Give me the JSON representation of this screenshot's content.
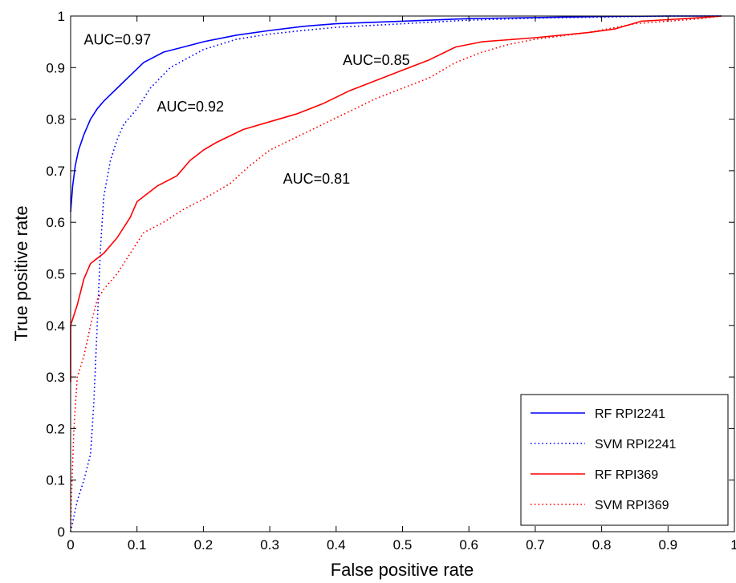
{
  "chart_data": {
    "type": "line",
    "xlabel": "False positive rate",
    "ylabel": "True positive rate",
    "xlim": [
      0,
      1
    ],
    "ylim": [
      0,
      1
    ],
    "x_ticks": [
      "0",
      "0.1",
      "0.2",
      "0.3",
      "0.4",
      "0.5",
      "0.6",
      "0.7",
      "0.8",
      "0.9",
      "1"
    ],
    "y_ticks": [
      "0",
      "0.1",
      "0.2",
      "0.3",
      "0.4",
      "0.5",
      "0.6",
      "0.7",
      "0.8",
      "0.9",
      "1"
    ],
    "grid": false,
    "legend_position": "bottom-right",
    "series": [
      {
        "name": "RF RPI2241",
        "color": "#0000ff",
        "style": "solid",
        "points": [
          [
            0,
            0.62
          ],
          [
            0.003,
            0.67
          ],
          [
            0.007,
            0.71
          ],
          [
            0.012,
            0.74
          ],
          [
            0.02,
            0.77
          ],
          [
            0.03,
            0.8
          ],
          [
            0.04,
            0.82
          ],
          [
            0.05,
            0.835
          ],
          [
            0.07,
            0.86
          ],
          [
            0.09,
            0.885
          ],
          [
            0.11,
            0.91
          ],
          [
            0.14,
            0.93
          ],
          [
            0.17,
            0.94
          ],
          [
            0.2,
            0.95
          ],
          [
            0.25,
            0.963
          ],
          [
            0.3,
            0.972
          ],
          [
            0.35,
            0.98
          ],
          [
            0.4,
            0.985
          ],
          [
            0.5,
            0.99
          ],
          [
            0.6,
            0.995
          ],
          [
            0.7,
            0.997
          ],
          [
            0.8,
            0.999
          ],
          [
            0.9,
            1
          ],
          [
            0.98,
            1
          ]
        ]
      },
      {
        "name": "SVM RPI2241",
        "color": "#0000ff",
        "style": "dotted",
        "points": [
          [
            0,
            0
          ],
          [
            0.005,
            0.03
          ],
          [
            0.01,
            0.06
          ],
          [
            0.02,
            0.1
          ],
          [
            0.03,
            0.15
          ],
          [
            0.035,
            0.25
          ],
          [
            0.04,
            0.4
          ],
          [
            0.045,
            0.55
          ],
          [
            0.05,
            0.65
          ],
          [
            0.06,
            0.72
          ],
          [
            0.07,
            0.76
          ],
          [
            0.08,
            0.79
          ],
          [
            0.1,
            0.82
          ],
          [
            0.12,
            0.86
          ],
          [
            0.15,
            0.9
          ],
          [
            0.2,
            0.935
          ],
          [
            0.25,
            0.955
          ],
          [
            0.3,
            0.965
          ],
          [
            0.35,
            0.972
          ],
          [
            0.4,
            0.978
          ],
          [
            0.5,
            0.985
          ],
          [
            0.6,
            0.992
          ],
          [
            0.7,
            0.996
          ],
          [
            0.8,
            0.998
          ],
          [
            0.9,
            1
          ],
          [
            0.98,
            1
          ]
        ]
      },
      {
        "name": "RF RPI369",
        "color": "#ff0000",
        "style": "solid",
        "points": [
          [
            0,
            0.29
          ],
          [
            0,
            0.4
          ],
          [
            0.01,
            0.44
          ],
          [
            0.02,
            0.49
          ],
          [
            0.03,
            0.52
          ],
          [
            0.05,
            0.54
          ],
          [
            0.07,
            0.57
          ],
          [
            0.09,
            0.61
          ],
          [
            0.1,
            0.64
          ],
          [
            0.13,
            0.67
          ],
          [
            0.16,
            0.69
          ],
          [
            0.18,
            0.72
          ],
          [
            0.2,
            0.74
          ],
          [
            0.22,
            0.755
          ],
          [
            0.26,
            0.78
          ],
          [
            0.3,
            0.795
          ],
          [
            0.34,
            0.81
          ],
          [
            0.38,
            0.83
          ],
          [
            0.42,
            0.855
          ],
          [
            0.46,
            0.875
          ],
          [
            0.5,
            0.895
          ],
          [
            0.54,
            0.915
          ],
          [
            0.58,
            0.94
          ],
          [
            0.62,
            0.95
          ],
          [
            0.7,
            0.958
          ],
          [
            0.78,
            0.968
          ],
          [
            0.82,
            0.975
          ],
          [
            0.86,
            0.99
          ],
          [
            0.9,
            0.993
          ],
          [
            0.95,
            0.997
          ],
          [
            0.98,
            1
          ]
        ]
      },
      {
        "name": "SVM RPI369",
        "color": "#ff0000",
        "style": "dotted",
        "points": [
          [
            0,
            0
          ],
          [
            0.002,
            0.1
          ],
          [
            0.005,
            0.2
          ],
          [
            0.01,
            0.3
          ],
          [
            0.02,
            0.34
          ],
          [
            0.03,
            0.4
          ],
          [
            0.04,
            0.45
          ],
          [
            0.05,
            0.47
          ],
          [
            0.07,
            0.5
          ],
          [
            0.09,
            0.54
          ],
          [
            0.11,
            0.58
          ],
          [
            0.14,
            0.6
          ],
          [
            0.17,
            0.625
          ],
          [
            0.2,
            0.645
          ],
          [
            0.24,
            0.675
          ],
          [
            0.27,
            0.71
          ],
          [
            0.3,
            0.74
          ],
          [
            0.34,
            0.765
          ],
          [
            0.38,
            0.79
          ],
          [
            0.42,
            0.815
          ],
          [
            0.46,
            0.84
          ],
          [
            0.5,
            0.86
          ],
          [
            0.54,
            0.88
          ],
          [
            0.58,
            0.91
          ],
          [
            0.62,
            0.93
          ],
          [
            0.66,
            0.945
          ],
          [
            0.7,
            0.955
          ],
          [
            0.78,
            0.968
          ],
          [
            0.85,
            0.985
          ],
          [
            0.9,
            0.99
          ],
          [
            0.95,
            0.995
          ],
          [
            0.98,
            1
          ]
        ]
      }
    ],
    "annotations": [
      {
        "text": "AUC=0.97",
        "x": 0.02,
        "y": 0.945
      },
      {
        "text": "AUC=0.92",
        "x": 0.13,
        "y": 0.815
      },
      {
        "text": "AUC=0.85",
        "x": 0.41,
        "y": 0.905
      },
      {
        "text": "AUC=0.81",
        "x": 0.32,
        "y": 0.675
      }
    ]
  }
}
